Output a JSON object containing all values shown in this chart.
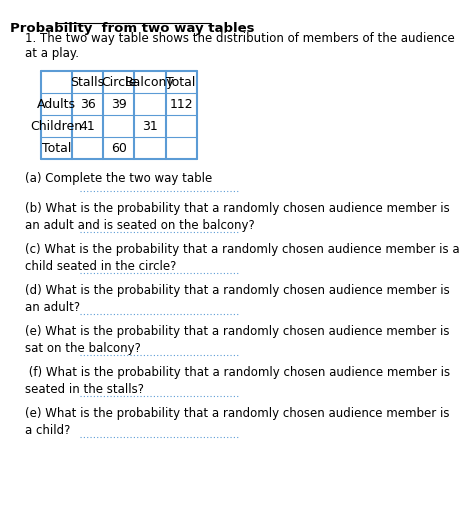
{
  "title": "Probability  from two way tables",
  "intro": "1. The two way table shows the distribution of members of the audience\nat a play.",
  "table_headers": [
    "",
    "Stalls",
    "Circle",
    "Balcony",
    "Total"
  ],
  "table_rows": [
    [
      "Adults",
      "36",
      "39",
      "",
      "112"
    ],
    [
      "Children",
      "41",
      "",
      "31",
      ""
    ],
    [
      "Total",
      "",
      "60",
      "",
      ""
    ]
  ],
  "questions": [
    "(a) Complete the two way table",
    "(b) What is the probability that a randomly chosen audience member is\nan adult and is seated on the balcony?",
    "(c) What is the probability that a randomly chosen audience member is a\nchild seated in the circle?",
    "(d) What is the probability that a randomly chosen audience member is\nan adult?",
    "(e) What is the probability that a randomly chosen audience member is\nsat on the balcony?",
    " (f) What is the probability that a randomly chosen audience member is\nseated in the stalls?",
    "(e) What is the probability that a randomly chosen audience member is\na child?"
  ],
  "bg_color": "#ffffff",
  "text_color": "#000000",
  "table_border_color": "#5b9bd5",
  "dotted_line_color": "#5b9bd5",
  "title_fontsize": 9.5,
  "body_fontsize": 8.5,
  "table_fontsize": 9
}
